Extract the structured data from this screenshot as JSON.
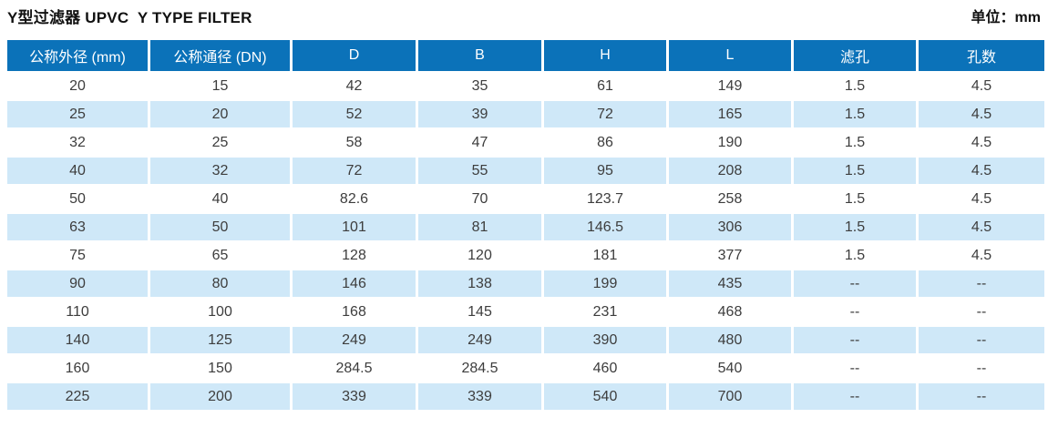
{
  "page": {
    "title": "Y型过滤器 UPVC  Y TYPE FILTER",
    "unit_label": "单位：mm"
  },
  "colors": {
    "header_bg": "#0b72b9",
    "alt_row_bg": "#cfe8f8",
    "header_text": "#ffffff",
    "cell_text": "#3d3d3d"
  },
  "table": {
    "headers": [
      "公称外径 (mm)",
      "公称通径 (DN)",
      "D",
      "B",
      "H",
      "L",
      "滤孔",
      "孔数"
    ],
    "rows": [
      [
        "20",
        "15",
        "42",
        "35",
        "61",
        "149",
        "1.5",
        "4.5"
      ],
      [
        "25",
        "20",
        "52",
        "39",
        "72",
        "165",
        "1.5",
        "4.5"
      ],
      [
        "32",
        "25",
        "58",
        "47",
        "86",
        "190",
        "1.5",
        "4.5"
      ],
      [
        "40",
        "32",
        "72",
        "55",
        "95",
        "208",
        "1.5",
        "4.5"
      ],
      [
        "50",
        "40",
        "82.6",
        "70",
        "123.7",
        "258",
        "1.5",
        "4.5"
      ],
      [
        "63",
        "50",
        "101",
        "81",
        "146.5",
        "306",
        "1.5",
        "4.5"
      ],
      [
        "75",
        "65",
        "128",
        "120",
        "181",
        "377",
        "1.5",
        "4.5"
      ],
      [
        "90",
        "80",
        "146",
        "138",
        "199",
        "435",
        "--",
        "--"
      ],
      [
        "110",
        "100",
        "168",
        "145",
        "231",
        "468",
        "--",
        "--"
      ],
      [
        "140",
        "125",
        "249",
        "249",
        "390",
        "480",
        "--",
        "--"
      ],
      [
        "160",
        "150",
        "284.5",
        "284.5",
        "460",
        "540",
        "--",
        "--"
      ],
      [
        "225",
        "200",
        "339",
        "339",
        "540",
        "700",
        "--",
        "--"
      ]
    ]
  }
}
